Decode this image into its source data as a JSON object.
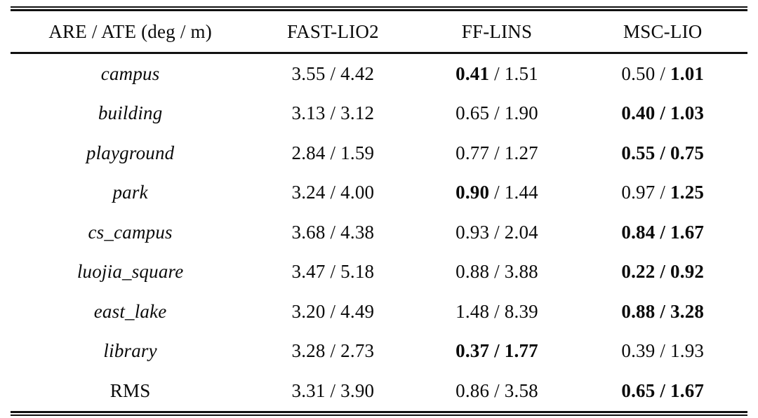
{
  "table": {
    "title_hint": "ARE / ATE comparison table",
    "separator": " / ",
    "columns": [
      "ARE / ATE (deg / m)",
      "FAST-LIO2",
      "FF-LINS",
      "MSC-LIO"
    ],
    "rows": [
      {
        "label": "campus",
        "italic": true,
        "cells": [
          {
            "are": "3.55",
            "ate": "4.42",
            "are_bold": false,
            "ate_bold": false
          },
          {
            "are": "0.41",
            "ate": "1.51",
            "are_bold": true,
            "ate_bold": false
          },
          {
            "are": "0.50",
            "ate": "1.01",
            "are_bold": false,
            "ate_bold": true
          }
        ]
      },
      {
        "label": "building",
        "italic": true,
        "cells": [
          {
            "are": "3.13",
            "ate": "3.12",
            "are_bold": false,
            "ate_bold": false
          },
          {
            "are": "0.65",
            "ate": "1.90",
            "are_bold": false,
            "ate_bold": false
          },
          {
            "are": "0.40",
            "ate": "1.03",
            "are_bold": true,
            "ate_bold": true
          }
        ]
      },
      {
        "label": "playground",
        "italic": true,
        "cells": [
          {
            "are": "2.84",
            "ate": "1.59",
            "are_bold": false,
            "ate_bold": false
          },
          {
            "are": "0.77",
            "ate": "1.27",
            "are_bold": false,
            "ate_bold": false
          },
          {
            "are": "0.55",
            "ate": "0.75",
            "are_bold": true,
            "ate_bold": true
          }
        ]
      },
      {
        "label": "park",
        "italic": true,
        "cells": [
          {
            "are": "3.24",
            "ate": "4.00",
            "are_bold": false,
            "ate_bold": false
          },
          {
            "are": "0.90",
            "ate": "1.44",
            "are_bold": true,
            "ate_bold": false
          },
          {
            "are": "0.97",
            "ate": "1.25",
            "are_bold": false,
            "ate_bold": true
          }
        ]
      },
      {
        "label": "cs_campus",
        "italic": true,
        "cells": [
          {
            "are": "3.68",
            "ate": "4.38",
            "are_bold": false,
            "ate_bold": false
          },
          {
            "are": "0.93",
            "ate": "2.04",
            "are_bold": false,
            "ate_bold": false
          },
          {
            "are": "0.84",
            "ate": "1.67",
            "are_bold": true,
            "ate_bold": true
          }
        ]
      },
      {
        "label": "luojia_square",
        "italic": true,
        "cells": [
          {
            "are": "3.47",
            "ate": "5.18",
            "are_bold": false,
            "ate_bold": false
          },
          {
            "are": "0.88",
            "ate": "3.88",
            "are_bold": false,
            "ate_bold": false
          },
          {
            "are": "0.22",
            "ate": "0.92",
            "are_bold": true,
            "ate_bold": true
          }
        ]
      },
      {
        "label": "east_lake",
        "italic": true,
        "cells": [
          {
            "are": "3.20",
            "ate": "4.49",
            "are_bold": false,
            "ate_bold": false
          },
          {
            "are": "1.48",
            "ate": "8.39",
            "are_bold": false,
            "ate_bold": false
          },
          {
            "are": "0.88",
            "ate": "3.28",
            "are_bold": true,
            "ate_bold": true
          }
        ]
      },
      {
        "label": "library",
        "italic": true,
        "cells": [
          {
            "are": "3.28",
            "ate": "2.73",
            "are_bold": false,
            "ate_bold": false
          },
          {
            "are": "0.37",
            "ate": "1.77",
            "are_bold": true,
            "ate_bold": true
          },
          {
            "are": "0.39",
            "ate": "1.93",
            "are_bold": false,
            "ate_bold": false
          }
        ]
      },
      {
        "label": "RMS",
        "italic": false,
        "cells": [
          {
            "are": "3.31",
            "ate": "3.90",
            "are_bold": false,
            "ate_bold": false
          },
          {
            "are": "0.86",
            "ate": "3.58",
            "are_bold": false,
            "ate_bold": false
          },
          {
            "are": "0.65",
            "ate": "1.67",
            "are_bold": true,
            "ate_bold": true
          }
        ]
      }
    ],
    "colors": {
      "text": "#0a0a0a",
      "rule": "#111111",
      "background": "#ffffff"
    }
  }
}
